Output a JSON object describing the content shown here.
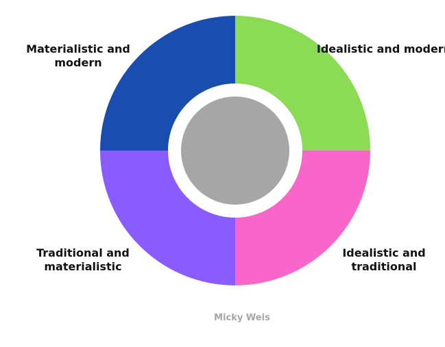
{
  "quadrants": [
    {
      "label": "Materialistic and modern",
      "color": "#1a4db0"
    },
    {
      "label": "Idealistic and modern",
      "color": "#8cdb57"
    },
    {
      "label": "Idealistic and traditional",
      "color": "#f766c8"
    },
    {
      "label": "Traditional and materialistic",
      "color": "#8a5cff"
    }
  ],
  "center_color": "#a6a6a6",
  "credit": "Micky Weis"
}
